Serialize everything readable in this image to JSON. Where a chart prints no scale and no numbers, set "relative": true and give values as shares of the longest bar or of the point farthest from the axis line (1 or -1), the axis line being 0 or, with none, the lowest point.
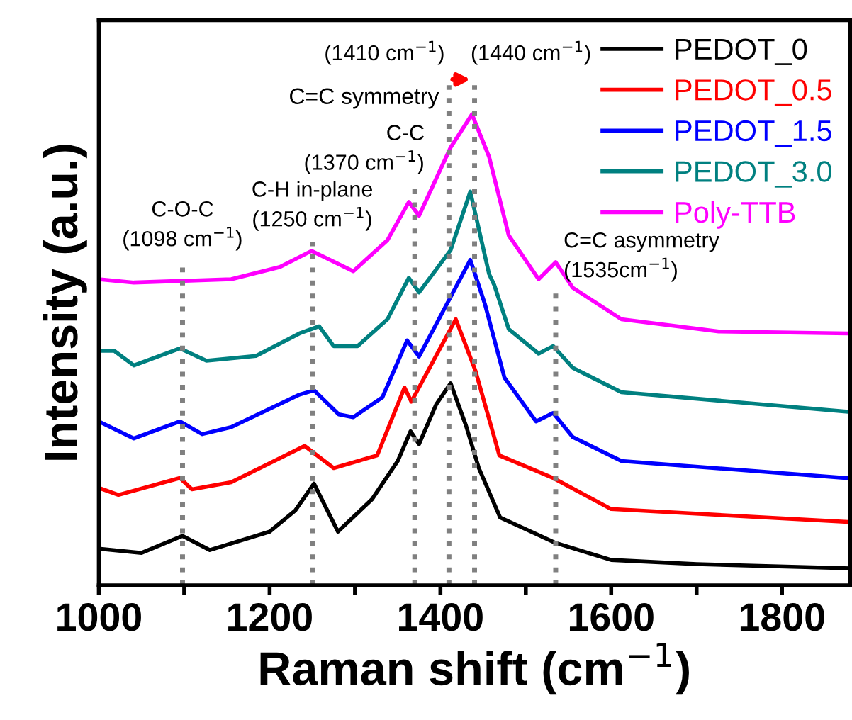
{
  "chart_data": {
    "type": "line",
    "relative": true,
    "xlabel": "Raman shift (cm$^{−1}$)",
    "ylabel": "Intensity (a.u.)",
    "xlim": [
      1000,
      1880
    ],
    "xticks": [
      1000,
      {
        "value": 1100,
        "label": null
      },
      1200,
      {
        "value": 1300,
        "label": null
      },
      1400,
      {
        "value": 1500,
        "label": null
      },
      1600,
      {
        "value": 1700,
        "label": null
      },
      1800
    ],
    "tick_labels": "x",
    "legend": "top right",
    "grid": false,
    "line_style": "solid",
    "series": [
      {
        "name": "PEDOT_0",
        "color": "#000000",
        "x": [
          1000,
          1050,
          1098,
          1130,
          1200,
          1230,
          1252,
          1280,
          1320,
          1350,
          1365,
          1375,
          1395,
          1412,
          1430,
          1445,
          1470,
          1535,
          1600,
          1700,
          1880
        ],
        "values": [
          0.078,
          0.069,
          0.105,
          0.075,
          0.114,
          0.159,
          0.216,
          0.114,
          0.183,
          0.264,
          0.327,
          0.3,
          0.384,
          0.429,
          0.339,
          0.249,
          0.144,
          0.09,
          0.054,
          0.045,
          0.036
        ]
      },
      {
        "name": "PEDOT_0.5",
        "color": "#ff0000",
        "x": [
          1000,
          1023,
          1095,
          1109,
          1155,
          1241,
          1275,
          1326,
          1358,
          1366,
          1418,
          1441,
          1469,
          1532,
          1600,
          1875
        ],
        "values": [
          0.207,
          0.192,
          0.228,
          0.204,
          0.219,
          0.296,
          0.249,
          0.276,
          0.42,
          0.39,
          0.565,
          0.456,
          0.276,
          0.228,
          0.162,
          0.135
        ]
      },
      {
        "name": "PEDOT_1.5",
        "color": "#0000ff",
        "x": [
          1000,
          1041,
          1095,
          1121,
          1155,
          1235,
          1252,
          1281,
          1298,
          1332,
          1361,
          1375,
          1435,
          1452,
          1475,
          1512,
          1532,
          1555,
          1612,
          1875
        ],
        "values": [
          0.348,
          0.312,
          0.348,
          0.321,
          0.336,
          0.405,
          0.414,
          0.363,
          0.357,
          0.399,
          0.52,
          0.486,
          0.691,
          0.598,
          0.441,
          0.348,
          0.366,
          0.315,
          0.264,
          0.228
        ]
      },
      {
        "name": "PEDOT_3.0",
        "color": "#008080",
        "x": [
          1000,
          1018,
          1041,
          1095,
          1126,
          1184,
          1235,
          1258,
          1275,
          1303,
          1338,
          1363,
          1375,
          1412,
          1435,
          1457,
          1463,
          1480,
          1515,
          1532,
          1555,
          1612,
          1875
        ],
        "values": [
          0.498,
          0.498,
          0.467,
          0.503,
          0.477,
          0.487,
          0.535,
          0.55,
          0.508,
          0.508,
          0.565,
          0.653,
          0.622,
          0.712,
          0.836,
          0.661,
          0.638,
          0.544,
          0.492,
          0.508,
          0.462,
          0.41,
          0.369
        ]
      },
      {
        "name": "Poly-TTB",
        "color": "#ff00ff",
        "x": [
          1000,
          1041,
          1155,
          1212,
          1249,
          1298,
          1338,
          1363,
          1375,
          1412,
          1437,
          1457,
          1480,
          1515,
          1535,
          1555,
          1612,
          1726,
          1875
        ],
        "values": [
          0.65,
          0.643,
          0.65,
          0.676,
          0.71,
          0.667,
          0.733,
          0.814,
          0.785,
          0.93,
          1.0,
          0.91,
          0.743,
          0.65,
          0.686,
          0.632,
          0.565,
          0.539,
          0.535
        ]
      }
    ],
    "ref_lines": [
      {
        "axis": "x",
        "value": 1098,
        "label": "C-O-C\n(1098 cm$^{−1}$)",
        "color": "#808080",
        "line_style": "dotted"
      },
      {
        "axis": "x",
        "value": 1250,
        "label": "C-H in-plane\n(1250 cm$^{−1}$)",
        "color": "#808080",
        "line_style": "dotted"
      },
      {
        "axis": "x",
        "value": 1370,
        "label": "C-C\n(1370 cm$^{−1}$)",
        "color": "#808080",
        "line_style": "dotted"
      },
      {
        "axis": "x",
        "value": 1410,
        "label": "(1410 cm$^{−1}$)",
        "color": "#808080",
        "line_style": "dotted"
      },
      {
        "axis": "x",
        "value": 1440,
        "label": "(1440 cm$^{−1}$)",
        "color": "#808080",
        "line_style": "dotted"
      },
      {
        "axis": "x",
        "value": 1535,
        "label": "C=C asymmetry\n(1535cm$^{−1}$)",
        "color": "#808080",
        "line_style": "dotted"
      }
    ],
    "annotations": [
      "C=C symmetry"
    ]
  }
}
